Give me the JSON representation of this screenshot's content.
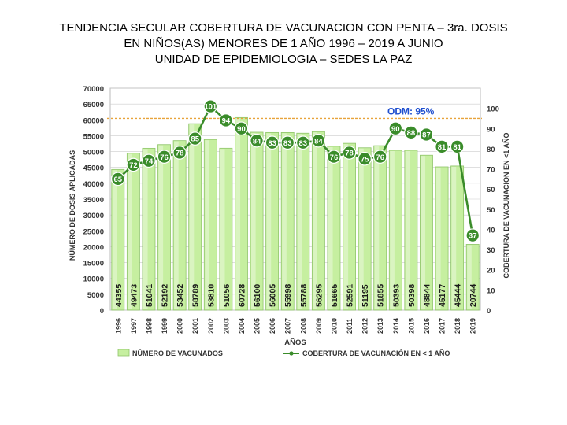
{
  "title_lines": [
    "TENDENCIA SECULAR COBERTURA DE VACUNACION CON PENTA – 3ra. DOSIS",
    "EN NIÑOS(AS) MENORES DE 1 AÑO 1996  – 2019 A JUNIO",
    "UNIDAD DE EPIDEMIOLOGIA – SEDES LA PAZ"
  ],
  "colors": {
    "bar_fill": "#c6efa0",
    "bar_stroke": "#8fc46a",
    "line": "#3a8c2a",
    "marker": "#3a8c2a",
    "odm_line": "#e8a33a",
    "odm_text": "#1f4fcf",
    "grid": "#cccccc"
  },
  "chart_data": {
    "type": "bar+line",
    "categories": [
      "1996",
      "1997",
      "1998",
      "1999",
      "2000",
      "2001",
      "2002",
      "2003",
      "2004",
      "2005",
      "2006",
      "2007",
      "2008",
      "2009",
      "2010",
      "2011",
      "2012",
      "2013",
      "2014",
      "2015",
      "2016",
      "2017",
      "2018",
      "2019"
    ],
    "series": [
      {
        "name": "NÚMERO DE VACUNADOS",
        "type": "bar",
        "axis": "left",
        "values": [
          44355,
          49473,
          51041,
          52192,
          53452,
          58789,
          53810,
          51056,
          60728,
          56100,
          56005,
          55998,
          55788,
          56295,
          51665,
          52591,
          51195,
          51855,
          50393,
          50398,
          48844,
          45177,
          45444,
          20744
        ]
      },
      {
        "name": "COBERTURA DE VACUNACIÓN EN < 1 AÑO",
        "type": "line",
        "axis": "right",
        "values": [
          65,
          72,
          74,
          76,
          78,
          85,
          101,
          94,
          90,
          84,
          83,
          83,
          83,
          84,
          76,
          78,
          75,
          76,
          90,
          88,
          87,
          81,
          81,
          37
        ]
      }
    ],
    "bar_value_labels": [
      "44355",
      "49473",
      "51041",
      "52192",
      "53452",
      "58789",
      "53810",
      "51056",
      "60728",
      "56100",
      "56005",
      "55998",
      "55788",
      "56295",
      "51665",
      "52591",
      "51195",
      "51855",
      "50393",
      "50398",
      "48844",
      "45177",
      "45444",
      "20744"
    ],
    "line_value_labels": [
      "65",
      "72",
      "74",
      "76",
      "78",
      "85",
      "101",
      "94",
      "90",
      "84",
      "83",
      "83",
      "83",
      "84",
      "76",
      "78",
      "75",
      "76",
      "90",
      "88",
      "87",
      "81",
      "81",
      "37"
    ],
    "left_axis": {
      "label": "NÚMERO DE DOSIS APLICADAS",
      "range": [
        0,
        70000
      ],
      "ticks": [
        "0",
        "5000",
        "10000",
        "15000",
        "20000",
        "25000",
        "30000",
        "35000",
        "40000",
        "45000",
        "50000",
        "55000",
        "60000",
        "65000",
        "70000"
      ]
    },
    "right_axis": {
      "label": "COBERTURA  DE  VACUNACION  EN <1 AÑO",
      "range": [
        0,
        110
      ],
      "ticks": [
        "0",
        "10",
        "20",
        "30",
        "40",
        "50",
        "60",
        "70",
        "80",
        "90",
        "100"
      ]
    },
    "xlabel": "AÑOS",
    "reference_line": {
      "label": "ODM: 95%",
      "value": 95
    },
    "legend": {
      "position": "bottom",
      "bar_label": "NÚMERO DE VACUNADOS",
      "line_label": "COBERTURA DE VACUNACIÓN EN < 1 AÑO"
    }
  }
}
